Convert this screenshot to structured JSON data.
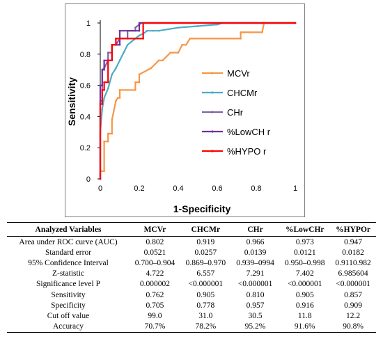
{
  "chart_data": {
    "type": "line",
    "xlabel": "1-Specificity",
    "ylabel": "Sensitivity",
    "xlim": [
      0,
      1
    ],
    "ylim": [
      0,
      1
    ],
    "x_ticks": [
      "0",
      "0.2",
      "0.4",
      "0.6",
      "0.8",
      "1"
    ],
    "y_ticks": [
      "0",
      "0.2",
      "0.4",
      "0.6",
      "0.8",
      "1"
    ],
    "legend_position": "inside-right",
    "series": [
      {
        "name": "MCVr",
        "color": "#f79646",
        "x": [
          0,
          0,
          0.02,
          0.02,
          0.04,
          0.04,
          0.06,
          0.06,
          0.08,
          0.09,
          0.1,
          0.1,
          0.18,
          0.18,
          0.2,
          0.2,
          0.26,
          0.3,
          0.32,
          0.36,
          0.4,
          0.42,
          0.44,
          0.46,
          0.48,
          0.6,
          0.62,
          0.72,
          0.72,
          0.74,
          0.76,
          0.83,
          0.84,
          1
        ],
        "y": [
          0,
          0.05,
          0.05,
          0.24,
          0.24,
          0.29,
          0.29,
          0.38,
          0.5,
          0.52,
          0.52,
          0.57,
          0.57,
          0.62,
          0.62,
          0.67,
          0.71,
          0.76,
          0.76,
          0.81,
          0.81,
          0.86,
          0.86,
          0.9,
          0.9,
          0.9,
          0.9,
          0.9,
          0.94,
          0.94,
          0.94,
          0.94,
          1,
          1
        ]
      },
      {
        "name": "CHCMr",
        "color": "#4bacc6",
        "x": [
          0,
          0,
          0.01,
          0.02,
          0.04,
          0.06,
          0.08,
          0.1,
          0.12,
          0.14,
          0.16,
          0.18,
          0.2,
          0.22,
          0.24,
          0.27,
          0.3,
          0.4,
          0.5,
          0.6,
          0.63,
          1
        ],
        "y": [
          0,
          0.3,
          0.45,
          0.52,
          0.58,
          0.67,
          0.71,
          0.76,
          0.81,
          0.86,
          0.88,
          0.9,
          0.92,
          0.93,
          0.95,
          0.95,
          0.95,
          0.97,
          0.98,
          0.99,
          1,
          1
        ]
      },
      {
        "name": "CHr",
        "color": "#8064a2",
        "x": [
          0,
          0,
          0.01,
          0.01,
          0.02,
          0.04,
          0.04,
          0.06,
          0.06,
          0.08,
          0.1,
          0.14,
          0.14,
          0.18,
          0.18,
          0.2,
          0.21,
          1
        ],
        "y": [
          0,
          0.5,
          0.5,
          0.7,
          0.71,
          0.76,
          0.81,
          0.81,
          0.86,
          0.86,
          0.9,
          0.9,
          0.95,
          0.95,
          0.97,
          0.99,
          1,
          1
        ]
      },
      {
        "name": "%LowCH r",
        "color": "#7030a0",
        "x": [
          0,
          0,
          0.01,
          0.01,
          0.02,
          0.02,
          0.04,
          0.06,
          0.06,
          0.1,
          0.1,
          0.2,
          0.2,
          1
        ],
        "y": [
          0,
          0.6,
          0.6,
          0.7,
          0.7,
          0.76,
          0.76,
          0.76,
          0.86,
          0.86,
          0.95,
          0.95,
          1,
          1
        ]
      },
      {
        "name": "%HYPO r",
        "color": "#ff0000",
        "x": [
          0,
          0,
          0.01,
          0.01,
          0.02,
          0.02,
          0.04,
          0.04,
          0.06,
          0.06,
          0.08,
          0.08,
          0.22,
          0.22,
          1
        ],
        "y": [
          0,
          0.48,
          0.48,
          0.57,
          0.57,
          0.62,
          0.62,
          0.76,
          0.76,
          0.86,
          0.86,
          0.9,
          0.9,
          1,
          1
        ]
      }
    ]
  },
  "table": {
    "headers": [
      "Analyzed Variables",
      "MCVr",
      "CHCMr",
      "CHr",
      "%LowCHr",
      "%HYPOr"
    ],
    "rows": [
      [
        "Area under ROC curve (AUC)",
        "0.802",
        "0.919",
        "0.966",
        "0.973",
        "0.947"
      ],
      [
        "Standard error",
        "0.0521",
        "0.0257",
        "0.0139",
        "0.0121",
        "0.0182"
      ],
      [
        "95% Confidence Interval",
        "0.700–0.904",
        "0.869–0.970",
        "0.939–0994",
        "0.950–0.998",
        "0.9110.982"
      ],
      [
        "Z-statistic",
        "4.722",
        "6.557",
        "7.291",
        "7.402",
        "6.985604"
      ],
      [
        "Significance level P",
        "0.000002",
        "<0.000001",
        "<0.000001",
        "<0.000001",
        "<0.000001"
      ],
      [
        "Sensitivity",
        "0.762",
        "0.905",
        "0.810",
        "0.905",
        "0.857"
      ],
      [
        "Specificity",
        "0.705",
        "0.778",
        "0.957",
        "0.916",
        "0.909"
      ],
      [
        "Cut off value",
        "99.0",
        "31.0",
        "30.5",
        "11.8",
        "12.2"
      ],
      [
        "Accuracy",
        "70.7%",
        "78.2%",
        "95.2%",
        "91.6%",
        "90.8%"
      ]
    ]
  }
}
